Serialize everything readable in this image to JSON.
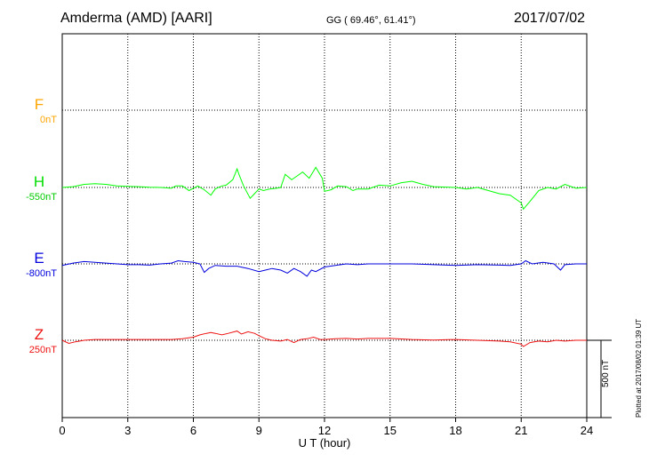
{
  "header": {
    "station": "Amderma (AMD)  [AARI]",
    "coords": "GG ( 69.46°,  61.41°)",
    "date": "2017/07/02"
  },
  "plotted": "Plotted at 2017/08/02 01:39 UT",
  "scale_bar": {
    "label": "500 nT",
    "value_nT": 500
  },
  "chart_data": {
    "type": "line",
    "title": "Amderma (AMD)  [AARI]",
    "xlabel": "U T (hour)",
    "xlim": [
      0,
      24
    ],
    "xticks": [
      0,
      3,
      6,
      9,
      12,
      15,
      18,
      21,
      24
    ],
    "grid": true,
    "series": [
      {
        "name": "F",
        "baseline_label": "0nT",
        "baseline_nT": 0,
        "color": "#ffa500",
        "x": [],
        "y": []
      },
      {
        "name": "H",
        "baseline_label": "-550nT",
        "baseline_nT": -550,
        "color": "#00ff00",
        "x": [
          0,
          0.5,
          1,
          1.5,
          2,
          2.5,
          3,
          3.5,
          4,
          4.5,
          5,
          5.2,
          5.5,
          5.8,
          6,
          6.2,
          6.5,
          6.8,
          7,
          7.3,
          7.5,
          7.8,
          8,
          8.1,
          8.3,
          8.6,
          8.8,
          9,
          9.2,
          9.5,
          9.8,
          10,
          10.2,
          10.5,
          10.8,
          11,
          11.3,
          11.6,
          11.9,
          12,
          12.3,
          12.6,
          13,
          13.3,
          13.5,
          14,
          14.5,
          15,
          15.5,
          16,
          16.5,
          17,
          18,
          18.5,
          19,
          19.5,
          20,
          20.5,
          21,
          21.1,
          21.4,
          21.8,
          22.2,
          22.6,
          23,
          23.5,
          24
        ],
        "y": [
          -550,
          -545,
          -530,
          -525,
          -530,
          -540,
          -543,
          -545,
          -548,
          -550,
          -555,
          -540,
          -540,
          -570,
          -555,
          -540,
          -565,
          -600,
          -560,
          -540,
          -535,
          -500,
          -430,
          -470,
          -540,
          -620,
          -590,
          -560,
          -570,
          -560,
          -555,
          -550,
          -465,
          -500,
          -470,
          -450,
          -490,
          -420,
          -490,
          -575,
          -565,
          -540,
          -545,
          -570,
          -560,
          -560,
          -535,
          -540,
          -520,
          -510,
          -530,
          -545,
          -550,
          -560,
          -550,
          -570,
          -590,
          -600,
          -650,
          -690,
          -640,
          -570,
          -550,
          -560,
          -530,
          -555,
          -550
        ]
      },
      {
        "name": "E",
        "baseline_label": "-800nT",
        "baseline_nT": -800,
        "color": "#0000dd",
        "x": [
          0,
          0.5,
          1,
          1.5,
          2,
          2.5,
          3,
          3.5,
          4,
          4.5,
          5,
          5.3,
          5.6,
          6,
          6.3,
          6.5,
          6.7,
          7,
          7.5,
          8,
          8.5,
          9,
          9.3,
          9.6,
          10,
          10.3,
          10.6,
          10.9,
          11.2,
          11.4,
          11.6,
          12,
          12.5,
          13,
          13.5,
          14,
          15,
          16,
          17,
          18,
          19,
          20,
          20.5,
          21,
          21.2,
          21.5,
          22,
          22.5,
          22.8,
          23,
          23.5,
          24
        ],
        "y": [
          -810,
          -795,
          -785,
          -790,
          -795,
          -800,
          -805,
          -805,
          -808,
          -800,
          -795,
          -780,
          -785,
          -790,
          -800,
          -855,
          -830,
          -810,
          -815,
          -815,
          -830,
          -850,
          -840,
          -830,
          -840,
          -860,
          -830,
          -850,
          -880,
          -840,
          -850,
          -820,
          -810,
          -800,
          -805,
          -800,
          -800,
          -800,
          -805,
          -810,
          -805,
          -808,
          -810,
          -800,
          -780,
          -800,
          -790,
          -800,
          -840,
          -805,
          -800,
          -800
        ]
      },
      {
        "name": "Z",
        "baseline_label": "250nT",
        "baseline_nT": 250,
        "color": "#ee1111",
        "x": [
          0,
          0.3,
          0.6,
          1,
          1.5,
          2,
          3,
          4,
          5,
          5.5,
          6,
          6.3,
          6.6,
          6.8,
          7,
          7.3,
          7.6,
          8,
          8.2,
          8.5,
          8.8,
          9,
          9.3,
          9.6,
          10,
          10.3,
          10.6,
          10.9,
          11.2,
          11.5,
          11.8,
          12,
          12.5,
          13,
          13.5,
          14,
          15,
          16,
          17,
          18,
          19,
          20,
          20.5,
          21,
          21.1,
          21.4,
          21.8,
          22.2,
          22.6,
          23,
          23.5,
          24
        ],
        "y": [
          250,
          230,
          240,
          250,
          255,
          255,
          255,
          255,
          255,
          260,
          270,
          285,
          295,
          300,
          295,
          285,
          295,
          310,
          290,
          305,
          295,
          280,
          260,
          250,
          245,
          255,
          235,
          255,
          260,
          270,
          255,
          255,
          260,
          262,
          258,
          262,
          262,
          255,
          252,
          255,
          250,
          245,
          240,
          225,
          210,
          235,
          245,
          240,
          250,
          245,
          250,
          250
        ]
      }
    ]
  }
}
